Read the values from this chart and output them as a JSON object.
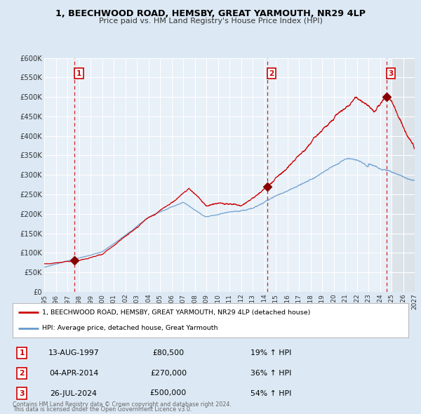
{
  "title": "1, BEECHWOOD ROAD, HEMSBY, GREAT YARMOUTH, NR29 4LP",
  "subtitle": "Price paid vs. HM Land Registry's House Price Index (HPI)",
  "xlim": [
    1995.0,
    2027.0
  ],
  "ylim": [
    0,
    600000
  ],
  "yticks": [
    0,
    50000,
    100000,
    150000,
    200000,
    250000,
    300000,
    350000,
    400000,
    450000,
    500000,
    550000,
    600000
  ],
  "ytick_labels": [
    "£0",
    "£50K",
    "£100K",
    "£150K",
    "£200K",
    "£250K",
    "£300K",
    "£350K",
    "£400K",
    "£450K",
    "£500K",
    "£550K",
    "£600K"
  ],
  "xticks": [
    1995,
    1996,
    1997,
    1998,
    1999,
    2000,
    2001,
    2002,
    2003,
    2004,
    2005,
    2006,
    2007,
    2008,
    2009,
    2010,
    2011,
    2012,
    2013,
    2014,
    2015,
    2016,
    2017,
    2018,
    2019,
    2020,
    2021,
    2022,
    2023,
    2024,
    2025,
    2026,
    2027
  ],
  "bg_color": "#dce9f5",
  "plot_bg_color": "#e8f0f8",
  "grid_color": "#ffffff",
  "red_line_color": "#cc0000",
  "blue_line_color": "#6699cc",
  "sale_marker_color": "#880000",
  "vline_color": "#cc0000",
  "sale1_x": 1997.617,
  "sale1_y": 80500,
  "sale2_x": 2014.253,
  "sale2_y": 270000,
  "sale3_x": 2024.567,
  "sale3_y": 500000,
  "label1_date": "13-AUG-1997",
  "label1_price": "£80,500",
  "label1_hpi": "19% ↑ HPI",
  "label2_date": "04-APR-2014",
  "label2_price": "£270,000",
  "label2_hpi": "36% ↑ HPI",
  "label3_date": "26-JUL-2024",
  "label3_price": "£500,000",
  "label3_hpi": "54% ↑ HPI",
  "legend_line1": "1, BEECHWOOD ROAD, HEMSBY, GREAT YARMOUTH, NR29 4LP (detached house)",
  "legend_line2": "HPI: Average price, detached house, Great Yarmouth",
  "footer1": "Contains HM Land Registry data © Crown copyright and database right 2024.",
  "footer2": "This data is licensed under the Open Government Licence v3.0."
}
